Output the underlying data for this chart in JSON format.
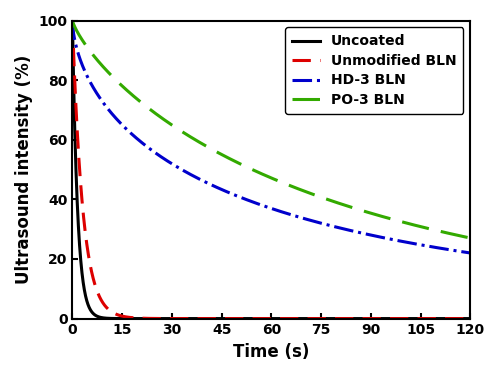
{
  "title": "",
  "xlabel": "Time (s)",
  "ylabel": "Ultrasound intensity (%)",
  "xlim": [
    0,
    120
  ],
  "ylim": [
    0,
    100
  ],
  "xticks": [
    0,
    15,
    30,
    45,
    60,
    75,
    90,
    105,
    120
  ],
  "yticks": [
    0,
    20,
    40,
    60,
    80,
    100
  ],
  "uncoated_color": "#000000",
  "unmod_color": "#dd0000",
  "hd3_color": "#0000cc",
  "po3_color": "#33aa00",
  "linewidth": 2.2,
  "legend_fontsize": 10,
  "axis_fontsize": 12,
  "tick_fontsize": 10,
  "figure_width": 5.0,
  "figure_height": 3.76,
  "dpi": 100,
  "uncoated_k": 0.65,
  "unmod_k": 0.32,
  "hd3_power_a": 100.0,
  "hd3_power_b": 0.38,
  "po3_power_a": 100.0,
  "po3_power_b": 0.31
}
